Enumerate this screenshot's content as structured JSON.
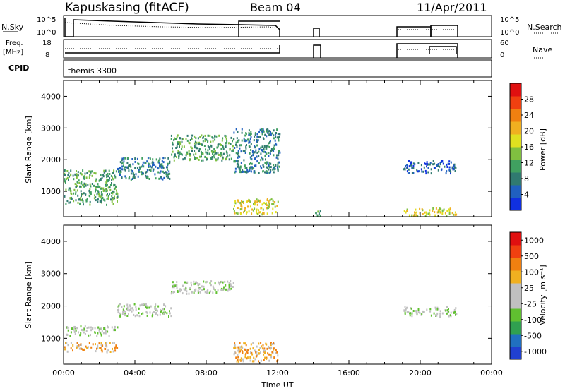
{
  "header": {
    "station": "Kapuskasing (fitACF)",
    "beam": "Beam 04",
    "date": "11/Apr/2011"
  },
  "summary": {
    "nsky_label": "N.Sky",
    "nsky_ticks": [
      "10^5",
      "10^0"
    ],
    "freq_label_1": "Freq.",
    "freq_label_2": "[MHz]",
    "freq_ticks": [
      "18",
      "8"
    ],
    "nsearch_label": "N.Search",
    "nsearch_ticks": [
      "10^5",
      "10^0"
    ],
    "nave_label": "Nave",
    "nave_ticks": [
      "60",
      "0"
    ],
    "cpid_label": "CPID",
    "cpid_value": "themis 3300"
  },
  "chart_data": [
    {
      "type": "heatmap",
      "panel": "power",
      "ylabel": "Slant Range [km]",
      "xlabel": "",
      "ylim": [
        200,
        4500
      ],
      "yticks": [
        "1000",
        "2000",
        "3000",
        "4000"
      ],
      "xlim_hours": [
        0,
        24
      ],
      "colorbar": {
        "label": "Power [dB]",
        "ticks": [
          "4",
          "8",
          "12",
          "16",
          "20",
          "24",
          "28"
        ],
        "colors": [
          "#1030e0",
          "#2060c0",
          "#307a70",
          "#40a060",
          "#80c040",
          "#e0e020",
          "#f0b020",
          "#f08010",
          "#f04010",
          "#e01010"
        ]
      },
      "regions": [
        {
          "t": [
            0.0,
            3.0
          ],
          "r": [
            600,
            1700
          ],
          "level": 3
        },
        {
          "t": [
            3.0,
            6.0
          ],
          "r": [
            1400,
            2100
          ],
          "level": 2
        },
        {
          "t": [
            6.0,
            9.5
          ],
          "r": [
            2000,
            2800
          ],
          "level": 3
        },
        {
          "t": [
            9.5,
            12.1
          ],
          "r": [
            1600,
            3000
          ],
          "level": 2
        },
        {
          "t": [
            9.5,
            12.0
          ],
          "r": [
            300,
            800
          ],
          "level": 5
        },
        {
          "t": [
            14.0,
            14.6
          ],
          "r": [
            250,
            400
          ],
          "level": 3
        },
        {
          "t": [
            19.0,
            22.0
          ],
          "r": [
            1600,
            2000
          ],
          "level": 1
        },
        {
          "t": [
            19.0,
            22.0
          ],
          "r": [
            250,
            500
          ],
          "level": 5
        }
      ]
    },
    {
      "type": "heatmap",
      "panel": "velocity",
      "ylabel": "Slant Range [km]",
      "xlabel": "Time UT",
      "ylim": [
        200,
        4500
      ],
      "yticks": [
        "1000",
        "2000",
        "3000",
        "4000"
      ],
      "xlim_hours": [
        0,
        24
      ],
      "xticks": [
        "00:00",
        "04:00",
        "08:00",
        "12:00",
        "16:00",
        "20:00",
        "00:00"
      ],
      "colorbar": {
        "label": "Velocity [m s⁻¹]",
        "ticks": [
          "1000",
          "500",
          "100",
          "25",
          "-25",
          "-100",
          "-500",
          "-1000"
        ],
        "colors": [
          "#2040d0",
          "#2070c0",
          "#30a050",
          "#60c030",
          "#c0c0c0",
          "#c0c0c0",
          "#f0b020",
          "#f08010",
          "#f04010",
          "#e01010"
        ]
      },
      "regions": [
        {
          "t": [
            0.0,
            3.0
          ],
          "r": [
            1100,
            1400
          ],
          "level": 4
        },
        {
          "t": [
            0.0,
            3.0
          ],
          "r": [
            600,
            900
          ],
          "level": 6
        },
        {
          "t": [
            3.0,
            6.0
          ],
          "r": [
            1700,
            2100
          ],
          "level": 4
        },
        {
          "t": [
            6.0,
            9.5
          ],
          "r": [
            2400,
            2800
          ],
          "level": 4
        },
        {
          "t": [
            9.5,
            12.0
          ],
          "r": [
            300,
            900
          ],
          "level": 6
        },
        {
          "t": [
            19.0,
            22.0
          ],
          "r": [
            1700,
            2000
          ],
          "level": 4
        }
      ]
    }
  ]
}
